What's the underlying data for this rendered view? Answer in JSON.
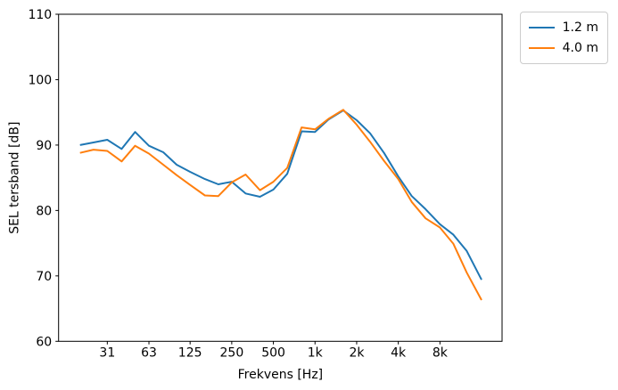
{
  "figure": {
    "background": "#ffffff",
    "text_color": "#000000",
    "spine_color": "#000000"
  },
  "legend": {
    "entries": [
      {
        "label": "1.2 m",
        "color": "#1f77b4"
      },
      {
        "label": "4.0 m",
        "color": "#ff7f0e"
      }
    ]
  },
  "chart_data": {
    "type": "line",
    "title": "",
    "xlabel": "Frekvens [Hz]",
    "ylabel": "SEL tersband [dB]",
    "x_scale": "log",
    "xlim": [
      14,
      22500
    ],
    "ylim": [
      60,
      110
    ],
    "grid": false,
    "legend_position": "outside-top-right",
    "line_width": 2,
    "x": [
      20,
      25,
      31.5,
      40,
      50,
      63,
      80,
      100,
      125,
      160,
      200,
      250,
      315,
      400,
      500,
      630,
      800,
      1000,
      1250,
      1600,
      2000,
      2500,
      3150,
      4000,
      5000,
      6300,
      8000,
      10000,
      12500,
      16000
    ],
    "xticks": [
      {
        "value": 31.5,
        "label": "31"
      },
      {
        "value": 63,
        "label": "63"
      },
      {
        "value": 125,
        "label": "125"
      },
      {
        "value": 250,
        "label": "250"
      },
      {
        "value": 500,
        "label": "500"
      },
      {
        "value": 1000,
        "label": "1k"
      },
      {
        "value": 2000,
        "label": "2k"
      },
      {
        "value": 4000,
        "label": "4k"
      },
      {
        "value": 8000,
        "label": "8k"
      }
    ],
    "yticks": [
      60,
      70,
      80,
      90,
      100,
      110
    ],
    "series": [
      {
        "name": "1.2 m",
        "color": "#1f77b4",
        "values": [
          90.0,
          90.4,
          90.8,
          89.4,
          92.0,
          89.9,
          88.9,
          87.0,
          85.9,
          84.8,
          84.0,
          84.4,
          82.6,
          82.1,
          83.2,
          85.6,
          92.1,
          92.0,
          93.9,
          95.3,
          93.8,
          91.8,
          88.8,
          85.2,
          82.2,
          80.2,
          77.9,
          76.3,
          73.8,
          69.4
        ]
      },
      {
        "name": "4.0 m",
        "color": "#ff7f0e",
        "values": [
          88.8,
          89.3,
          89.1,
          87.5,
          89.9,
          88.7,
          87.0,
          85.4,
          83.9,
          82.3,
          82.2,
          84.3,
          85.5,
          83.1,
          84.4,
          86.5,
          92.7,
          92.4,
          94.0,
          95.4,
          93.1,
          90.5,
          87.6,
          84.8,
          81.3,
          78.8,
          77.4,
          74.9,
          70.5,
          66.3
        ]
      }
    ]
  }
}
